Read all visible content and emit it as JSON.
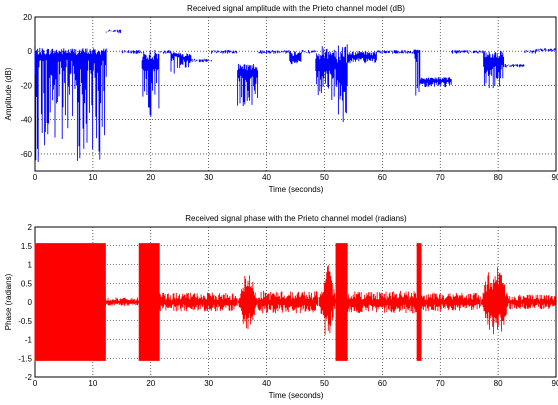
{
  "chart_data": [
    {
      "type": "line",
      "title": "Received signal amplitude with the Prieto channel model (dB)",
      "xlabel": "Time (seconds)",
      "ylabel": "Amplitude (dB)",
      "xlim": [
        0,
        90
      ],
      "ylim": [
        -70,
        20
      ],
      "xticks": [
        0,
        10,
        20,
        30,
        40,
        50,
        60,
        70,
        80,
        90
      ],
      "yticks": [
        20,
        0,
        -20,
        -40,
        -60
      ],
      "grid": true,
      "color": "#0000ff",
      "segments": [
        {
          "x": [
            0,
            12.3
          ],
          "base": -5,
          "min": -65,
          "max": 2
        },
        {
          "x": [
            12.3,
            14.8
          ],
          "base": 12,
          "min": 11,
          "max": 13
        },
        {
          "x": [
            14.8,
            18.5
          ],
          "base": 0,
          "min": -2,
          "max": 1
        },
        {
          "x": [
            18.5,
            21.5
          ],
          "base": -10,
          "min": -40,
          "max": 1
        },
        {
          "x": [
            21.5,
            23.5
          ],
          "base": 0,
          "min": -2,
          "max": 1
        },
        {
          "x": [
            23.5,
            25.0
          ],
          "base": -3,
          "min": -14,
          "max": 0
        },
        {
          "x": [
            25.0,
            27.0
          ],
          "base": -5,
          "min": -10,
          "max": -1
        },
        {
          "x": [
            27.0,
            30.5
          ],
          "base": -5,
          "min": -8,
          "max": -3
        },
        {
          "x": [
            30.5,
            35.0
          ],
          "base": 0,
          "min": -2,
          "max": 1
        },
        {
          "x": [
            35.0,
            38.5
          ],
          "base": -14,
          "min": -34,
          "max": -7
        },
        {
          "x": [
            38.5,
            44.0
          ],
          "base": 0,
          "min": -2,
          "max": 1
        },
        {
          "x": [
            44.0,
            46.0
          ],
          "base": -5,
          "min": -8,
          "max": 0
        },
        {
          "x": [
            46.0,
            48.5
          ],
          "base": 0,
          "min": -2,
          "max": 1
        },
        {
          "x": [
            48.5,
            52.0
          ],
          "base": -10,
          "min": -30,
          "max": 3
        },
        {
          "x": [
            52.0,
            54.0
          ],
          "base": -15,
          "min": -50,
          "max": 6
        },
        {
          "x": [
            54.0,
            59.0
          ],
          "base": -4,
          "min": -7,
          "max": 0
        },
        {
          "x": [
            59.0,
            63.5
          ],
          "base": 0,
          "min": -2,
          "max": 1
        },
        {
          "x": [
            63.5,
            65.5
          ],
          "base": 0,
          "min": -2,
          "max": 1
        },
        {
          "x": [
            65.5,
            66.5
          ],
          "base": 0,
          "min": -47,
          "max": 1
        },
        {
          "x": [
            66.5,
            72.0
          ],
          "base": -18,
          "min": -21,
          "max": -15
        },
        {
          "x": [
            72.0,
            77.5
          ],
          "base": 0,
          "min": -2,
          "max": 1
        },
        {
          "x": [
            77.5,
            81.0
          ],
          "base": -8,
          "min": -24,
          "max": 0
        },
        {
          "x": [
            81.0,
            84.5
          ],
          "base": -8,
          "min": -10,
          "max": -5
        },
        {
          "x": [
            84.5,
            86.5
          ],
          "base": 0,
          "min": -2,
          "max": 1
        },
        {
          "x": [
            86.5,
            90.0
          ],
          "base": 1,
          "min": -1,
          "max": 2
        }
      ]
    },
    {
      "type": "line",
      "title": "Received signal phase with the Prieto channel model (radians)",
      "xlabel": "Time (seconds)",
      "ylabel": "Phase (radians)",
      "xlim": [
        0,
        90
      ],
      "ylim": [
        -2,
        2
      ],
      "xticks": [
        0,
        10,
        20,
        30,
        40,
        50,
        60,
        70,
        80,
        90
      ],
      "yticks": [
        2,
        1.5,
        1,
        0.5,
        0,
        -0.5,
        -1,
        -1.5,
        -2
      ],
      "grid": true,
      "color": "#ff0000",
      "segments": [
        {
          "x": [
            0,
            12.2
          ],
          "band": [
            -1.57,
            1.57
          ],
          "kind": "band"
        },
        {
          "x": [
            12.2,
            18.0
          ],
          "amp": 0.12,
          "kind": "noise"
        },
        {
          "x": [
            18.0,
            21.5
          ],
          "band": [
            -1.57,
            1.57
          ],
          "kind": "band"
        },
        {
          "x": [
            21.5,
            35.0
          ],
          "amp": 0.25,
          "kind": "noise"
        },
        {
          "x": [
            35.0,
            38.5
          ],
          "amp": 0.8,
          "kind": "burst"
        },
        {
          "x": [
            38.5,
            49.0
          ],
          "amp": 0.3,
          "kind": "noise"
        },
        {
          "x": [
            49.0,
            52.0
          ],
          "amp": 1.0,
          "kind": "burst"
        },
        {
          "x": [
            52.0,
            54.0
          ],
          "band": [
            -1.57,
            1.57
          ],
          "kind": "band"
        },
        {
          "x": [
            54.0,
            66.0
          ],
          "amp": 0.3,
          "kind": "noise"
        },
        {
          "x": [
            66.0,
            66.7
          ],
          "band": [
            -1.57,
            1.57
          ],
          "kind": "band"
        },
        {
          "x": [
            66.7,
            77.0
          ],
          "amp": 0.25,
          "kind": "noise"
        },
        {
          "x": [
            77.0,
            82.0
          ],
          "amp": 1.1,
          "kind": "burst"
        },
        {
          "x": [
            82.0,
            90.0
          ],
          "amp": 0.2,
          "kind": "noise"
        }
      ]
    }
  ]
}
